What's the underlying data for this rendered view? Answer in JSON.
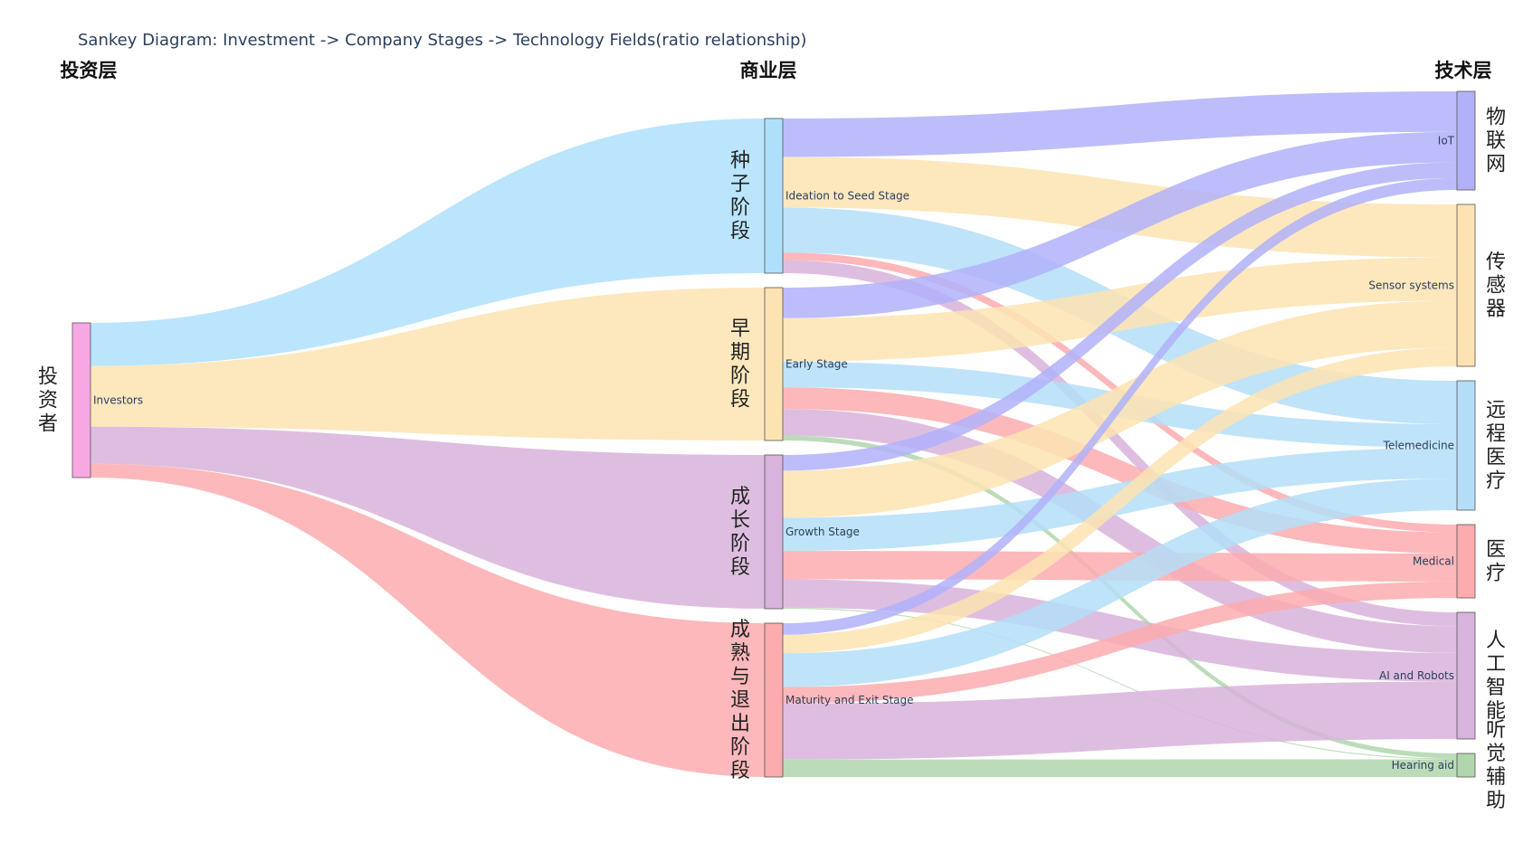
{
  "title": "Sankey Diagram: Investment -> Company Stages -> Technology Fields(ratio relationship)",
  "layer_headers": {
    "investment": "投资层",
    "business": "商业层",
    "technology": "技术层"
  },
  "nodes": [
    {
      "id": "investors",
      "label": "Investors",
      "side_label": "投资者",
      "color": "#f7a8e3"
    },
    {
      "id": "seed",
      "label": "Ideation to Seed Stage",
      "side_label": "种子阶段",
      "color": "#aee0fb"
    },
    {
      "id": "early",
      "label": "Early Stage",
      "side_label": "早期阶段",
      "color": "#fde3b1"
    },
    {
      "id": "growth",
      "label": "Growth Stage",
      "side_label": "成长阶段",
      "color": "#d8b3db"
    },
    {
      "id": "maturity",
      "label": "Maturity and Exit Stage",
      "side_label": "成熟与退出阶段",
      "color": "#fcabae"
    },
    {
      "id": "iot",
      "label": "IoT",
      "side_label": "物联网",
      "color": "#b1b1fa"
    },
    {
      "id": "sensor",
      "label": "Sensor systems",
      "side_label": "传感器",
      "color": "#fde3b1"
    },
    {
      "id": "tele",
      "label": "Telemedicine",
      "side_label": "远程医疗",
      "color": "#b4def8"
    },
    {
      "id": "medical",
      "label": "Medical",
      "side_label": "医疗",
      "color": "#fcabae"
    },
    {
      "id": "ai",
      "label": "AI and Robots",
      "side_label": "人工智能",
      "color": "#d8b3db"
    },
    {
      "id": "hearing",
      "label": "Hearing aid",
      "side_label": "听觉辅助",
      "color": "#b0d6ad"
    }
  ],
  "links": [
    {
      "source": "investors",
      "target": "seed",
      "value": 44,
      "color": "#aee0fb"
    },
    {
      "source": "investors",
      "target": "early",
      "value": 62,
      "color": "#fde3b1"
    },
    {
      "source": "investors",
      "target": "growth",
      "value": 38,
      "color": "#d8b3db"
    },
    {
      "source": "investors",
      "target": "maturity",
      "value": 14,
      "color": "#fcabae"
    },
    {
      "source": "seed",
      "target": "iot",
      "value": 41,
      "color": "#b1b1fa"
    },
    {
      "source": "seed",
      "target": "sensor",
      "value": 54,
      "color": "#fde3b1"
    },
    {
      "source": "seed",
      "target": "tele",
      "value": 48,
      "color": "#b4def8"
    },
    {
      "source": "seed",
      "target": "medical",
      "value": 8,
      "color": "#fcabae"
    },
    {
      "source": "seed",
      "target": "ai",
      "value": 14,
      "color": "#d8b3db"
    },
    {
      "source": "early",
      "target": "iot",
      "value": 31,
      "color": "#b1b1fa"
    },
    {
      "source": "early",
      "target": "sensor",
      "value": 44,
      "color": "#fde3b1"
    },
    {
      "source": "early",
      "target": "tele",
      "value": 26,
      "color": "#b4def8"
    },
    {
      "source": "early",
      "target": "medical",
      "value": 22,
      "color": "#fcabae"
    },
    {
      "source": "early",
      "target": "ai",
      "value": 27,
      "color": "#d8b3db"
    },
    {
      "source": "early",
      "target": "hearing",
      "value": 5,
      "color": "#b0d6ad"
    },
    {
      "source": "growth",
      "target": "iot",
      "value": 16,
      "color": "#b1b1fa"
    },
    {
      "source": "growth",
      "target": "sensor",
      "value": 48,
      "color": "#fde3b1"
    },
    {
      "source": "growth",
      "target": "tele",
      "value": 34,
      "color": "#b4def8"
    },
    {
      "source": "growth",
      "target": "medical",
      "value": 29,
      "color": "#fcabae"
    },
    {
      "source": "growth",
      "target": "ai",
      "value": 29,
      "color": "#d8b3db"
    },
    {
      "source": "growth",
      "target": "hearing",
      "value": 1,
      "color": "#b0d6ad"
    },
    {
      "source": "maturity",
      "target": "iot",
      "value": 12,
      "color": "#b1b1fa"
    },
    {
      "source": "maturity",
      "target": "sensor",
      "value": 19,
      "color": "#fde3b1"
    },
    {
      "source": "maturity",
      "target": "tele",
      "value": 35,
      "color": "#b4def8"
    },
    {
      "source": "maturity",
      "target": "medical",
      "value": 17,
      "color": "#fcabae"
    },
    {
      "source": "maturity",
      "target": "ai",
      "value": 58,
      "color": "#d8b3db"
    },
    {
      "source": "maturity",
      "target": "hearing",
      "value": 18,
      "color": "#b0d6ad"
    }
  ]
}
